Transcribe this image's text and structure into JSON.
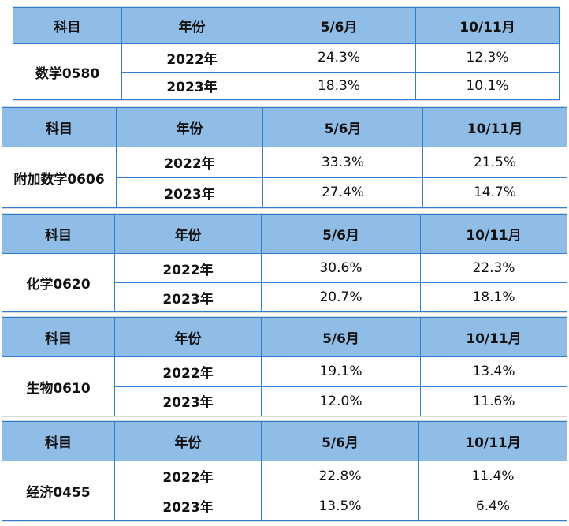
{
  "headers": [
    "科目",
    "年份",
    "5/6月",
    "10/11月"
  ],
  "tables": [
    {
      "subject": "数学0580",
      "rows": [
        {
          "year": "2022年",
          "may_jun": "24.3%",
          "oct_nov": "12.3%"
        },
        {
          "year": "2023年",
          "may_jun": "18.3%",
          "oct_nov": "10.1%"
        }
      ]
    },
    {
      "subject": "附加数学0606",
      "rows": [
        {
          "year": "2022年",
          "may_jun": "33.3%",
          "oct_nov": "21.5%"
        },
        {
          "year": "2023年",
          "may_jun": "27.4%",
          "oct_nov": "14.7%"
        }
      ]
    },
    {
      "subject": "化学0620",
      "rows": [
        {
          "year": "2022年",
          "may_jun": "30.6%",
          "oct_nov": "22.3%"
        },
        {
          "year": "2023年",
          "may_jun": "20.7%",
          "oct_nov": "18.1%"
        }
      ]
    },
    {
      "subject": "生物0610",
      "rows": [
        {
          "year": "2022年",
          "may_jun": "19.1%",
          "oct_nov": "13.4%"
        },
        {
          "year": "2023年",
          "may_jun": "12.0%",
          "oct_nov": "11.6%"
        }
      ]
    },
    {
      "subject": "经济0455",
      "rows": [
        {
          "year": "2022年",
          "may_jun": "22.8%",
          "oct_nov": "11.4%"
        },
        {
          "year": "2023年",
          "may_jun": "13.5%",
          "oct_nov": "6.4%"
        }
      ]
    }
  ]
}
